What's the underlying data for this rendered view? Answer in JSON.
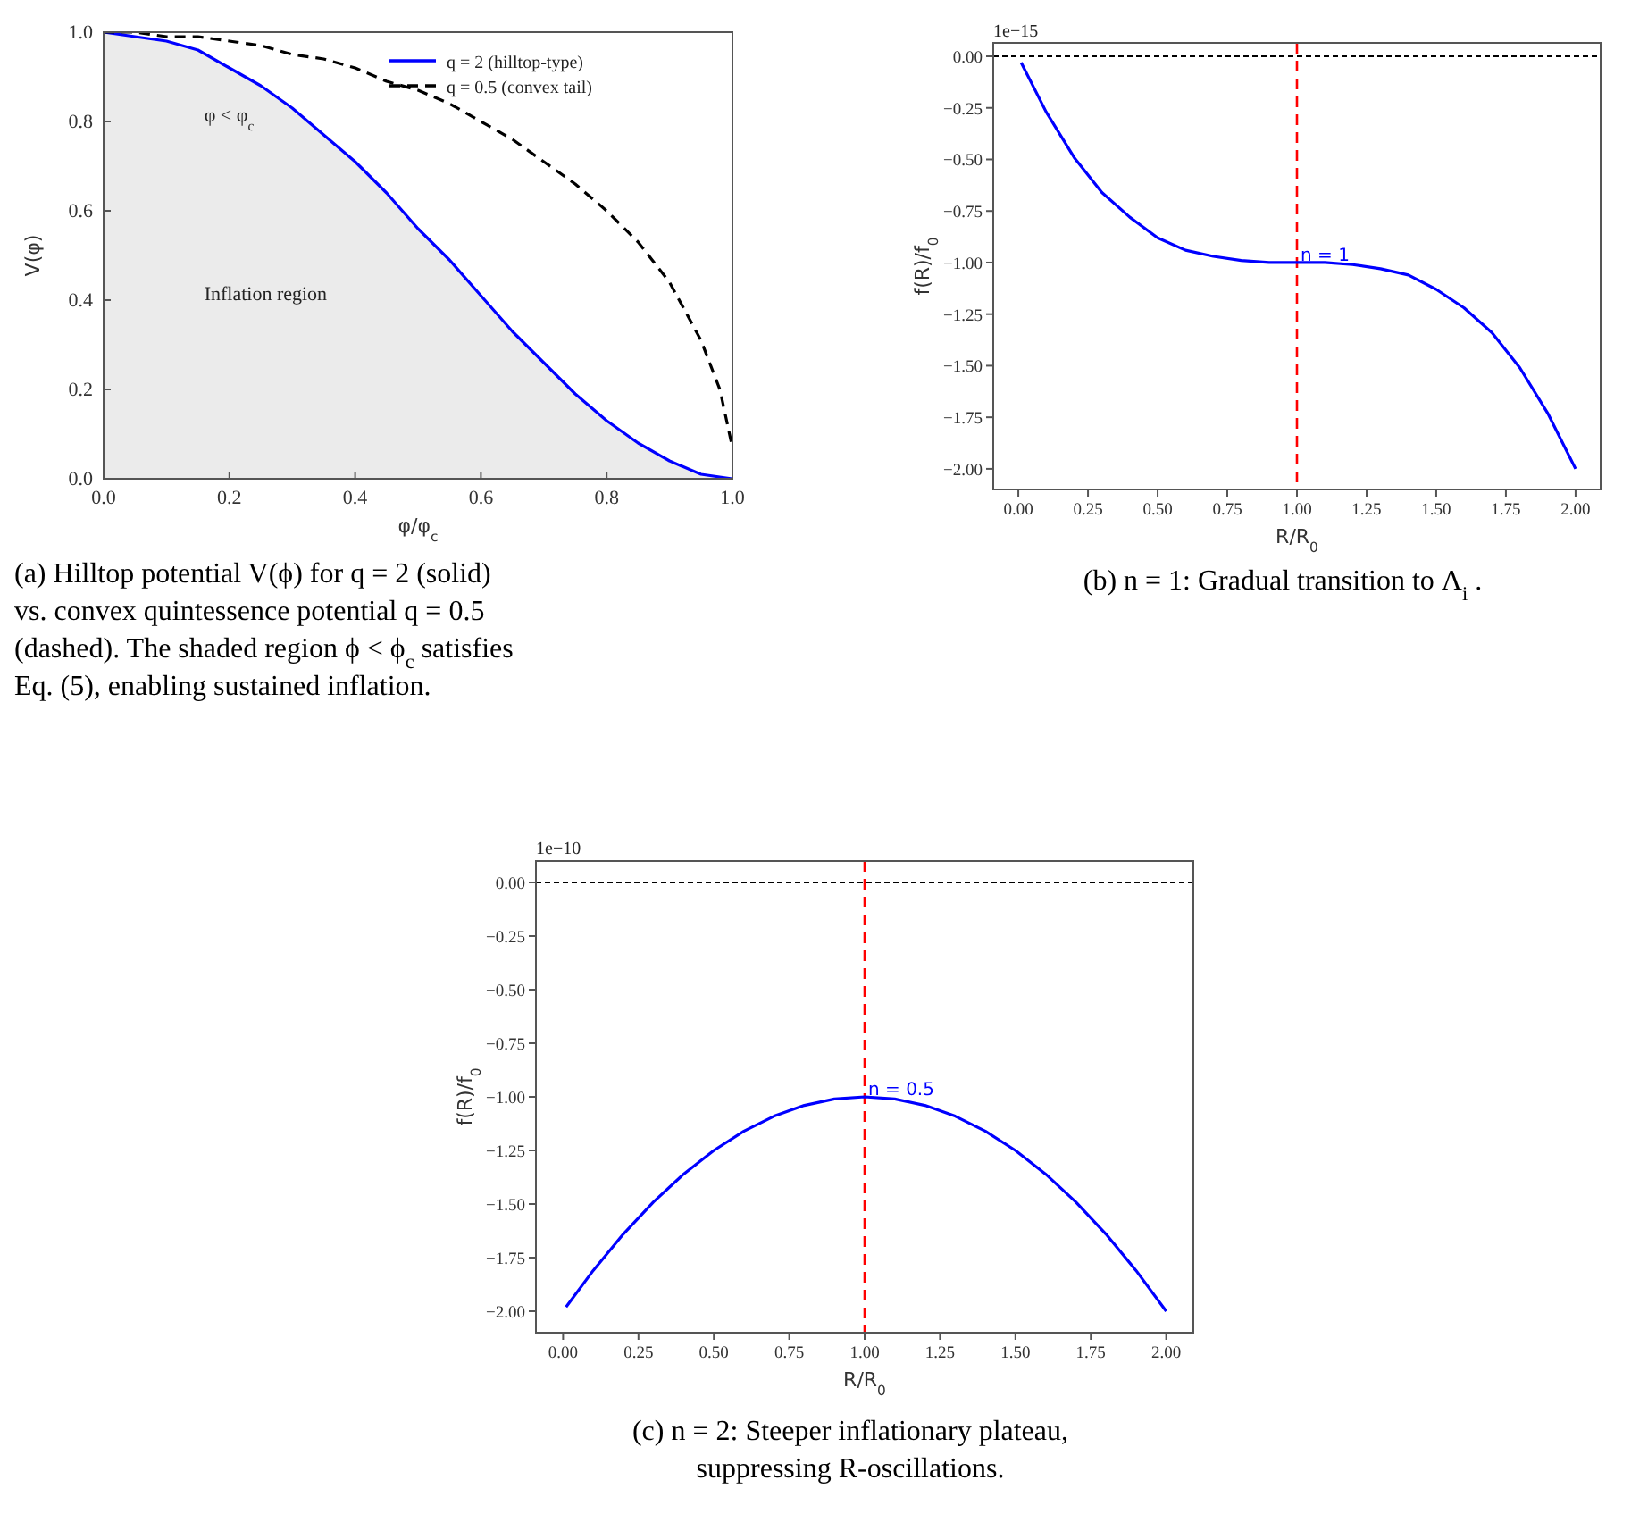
{
  "chart_data": [
    {
      "type": "line",
      "title": "(a) Hilltop potential V(ϕ) for q = 2 (solid) vs. convex quintessence potential q = 0.5 (dashed). The shaded region ϕ < ϕ$_{c}$ satisfies Eq. (5), enabling sustained inflation.",
      "xlabel": "φ/φ$_{c}$",
      "ylabel": "V(φ)",
      "xlim": [
        0,
        1
      ],
      "ylim": [
        0,
        1
      ],
      "xticks": [
        {
          "value": 0,
          "label": "0.0"
        },
        {
          "value": 0.2,
          "label": "0.2"
        },
        {
          "value": 0.4,
          "label": "0.4"
        },
        {
          "value": 0.6,
          "label": "0.6"
        },
        {
          "value": 0.8,
          "label": "0.8"
        },
        {
          "value": 1,
          "label": "1.0"
        }
      ],
      "yticks": [
        {
          "value": 0,
          "label": "0.0"
        },
        {
          "value": 0.2,
          "label": "0.2"
        },
        {
          "value": 0.4,
          "label": "0.4"
        },
        {
          "value": 0.6,
          "label": "0.6"
        },
        {
          "value": 0.8,
          "label": "0.8"
        },
        {
          "value": 1,
          "label": "1.0"
        }
      ],
      "legend": "top right",
      "annotations": [
        "φ < φ$_{c}$",
        "Inflation region"
      ],
      "series": [
        {
          "type": "area",
          "name": "q = 2 (hilltop-type)",
          "color": "#0000ff",
          "line_style": "solid",
          "x": [
            0,
            0.05,
            0.1,
            0.15,
            0.2,
            0.25,
            0.3,
            0.35,
            0.4,
            0.45,
            0.5,
            0.55,
            0.6,
            0.65,
            0.7,
            0.75,
            0.8,
            0.85,
            0.9,
            0.95,
            1
          ],
          "values": [
            1,
            0.99,
            0.98,
            0.96,
            0.92,
            0.88,
            0.83,
            0.77,
            0.71,
            0.64,
            0.56,
            0.49,
            0.41,
            0.33,
            0.26,
            0.19,
            0.13,
            0.08,
            0.04,
            0.01,
            0
          ]
        },
        {
          "name": "q = 0.5 (convex tail)",
          "color": "#000000",
          "line_style": "dashed",
          "x": [
            0,
            0.05,
            0.1,
            0.15,
            0.2,
            0.25,
            0.3,
            0.35,
            0.4,
            0.45,
            0.5,
            0.55,
            0.6,
            0.65,
            0.7,
            0.75,
            0.8,
            0.85,
            0.9,
            0.95,
            0.98,
            1
          ],
          "values": [
            1,
            1,
            0.99,
            0.99,
            0.98,
            0.97,
            0.95,
            0.94,
            0.92,
            0.89,
            0.87,
            0.84,
            0.8,
            0.76,
            0.71,
            0.66,
            0.6,
            0.53,
            0.44,
            0.31,
            0.2,
            0.07
          ]
        }
      ]
    },
    {
      "type": "line",
      "title": "(b) n = 1: Gradual transition to Λ$_{i}$.",
      "xlabel": "R/R$_{0}$",
      "ylabel": "f(R)/f$_{0}$",
      "xlim": [
        -0.09,
        2.09
      ],
      "ylim": [
        -2.1,
        0.065
      ],
      "xticks": [
        {
          "value": 0,
          "label": "0.00"
        },
        {
          "value": 0.25,
          "label": "0.25"
        },
        {
          "value": 0.5,
          "label": "0.50"
        },
        {
          "value": 0.75,
          "label": "0.75"
        },
        {
          "value": 1,
          "label": "1.00"
        },
        {
          "value": 1.25,
          "label": "1.25"
        },
        {
          "value": 1.5,
          "label": "1.50"
        },
        {
          "value": 1.75,
          "label": "1.75"
        },
        {
          "value": 2,
          "label": "2.00"
        }
      ],
      "yticks": [
        {
          "value": 0,
          "label": "0.00"
        },
        {
          "value": -0.25,
          "label": "−0.25"
        },
        {
          "value": -0.5,
          "label": "−0.50"
        },
        {
          "value": -0.75,
          "label": "−0.75"
        },
        {
          "value": -1,
          "label": "−1.00"
        },
        {
          "value": -1.25,
          "label": "−1.25"
        },
        {
          "value": -1.5,
          "label": "−1.50"
        },
        {
          "value": -1.75,
          "label": "−1.75"
        },
        {
          "value": -2,
          "label": "−2.00"
        }
      ],
      "annotations": [
        "1e−15",
        {
          "text": "n = 1",
          "x": 1,
          "y": -1
        }
      ],
      "ref_lines": [
        {
          "axis": "y",
          "value": 0,
          "color": "#000000",
          "line_style": "dashed"
        },
        {
          "axis": "x",
          "value": 1,
          "color": "#ff0000",
          "line_style": "dashed"
        }
      ],
      "series": [
        {
          "color": "#0000ff",
          "x": [
            0.01,
            0.1,
            0.2,
            0.3,
            0.4,
            0.5,
            0.6,
            0.7,
            0.8,
            0.9,
            1,
            1.1,
            1.2,
            1.3,
            1.4,
            1.5,
            1.6,
            1.7,
            1.8,
            1.9,
            2
          ],
          "values": [
            -0.03,
            -0.27,
            -0.49,
            -0.66,
            -0.78,
            -0.88,
            -0.94,
            -0.97,
            -0.99,
            -1,
            -1,
            -1,
            -1.01,
            -1.03,
            -1.06,
            -1.13,
            -1.22,
            -1.34,
            -1.51,
            -1.73,
            -2
          ]
        }
      ]
    },
    {
      "type": "line",
      "title": "(c) n = 2: Steeper inflationary plateau, suppressing R-oscillations.",
      "xlabel": "R/R$_{0}$",
      "ylabel": "f(R)/f$_{0}$",
      "xlim": [
        -0.09,
        2.09
      ],
      "ylim": [
        -2.1,
        0.1
      ],
      "xticks": [
        {
          "value": 0,
          "label": "0.00"
        },
        {
          "value": 0.25,
          "label": "0.25"
        },
        {
          "value": 0.5,
          "label": "0.50"
        },
        {
          "value": 0.75,
          "label": "0.75"
        },
        {
          "value": 1,
          "label": "1.00"
        },
        {
          "value": 1.25,
          "label": "1.25"
        },
        {
          "value": 1.5,
          "label": "1.50"
        },
        {
          "value": 1.75,
          "label": "1.75"
        },
        {
          "value": 2,
          "label": "2.00"
        }
      ],
      "yticks": [
        {
          "value": 0,
          "label": "0.00"
        },
        {
          "value": -0.25,
          "label": "−0.25"
        },
        {
          "value": -0.5,
          "label": "−0.50"
        },
        {
          "value": -0.75,
          "label": "−0.75"
        },
        {
          "value": -1,
          "label": "−1.00"
        },
        {
          "value": -1.25,
          "label": "−1.25"
        },
        {
          "value": -1.5,
          "label": "−1.50"
        },
        {
          "value": -1.75,
          "label": "−1.75"
        },
        {
          "value": -2,
          "label": "−2.00"
        }
      ],
      "annotations": [
        "1e−10",
        {
          "text": "n = 0.5",
          "x": 1,
          "y": -1
        }
      ],
      "ref_lines": [
        {
          "axis": "y",
          "value": 0,
          "color": "#000000",
          "line_style": "dashed"
        },
        {
          "axis": "x",
          "value": 1,
          "color": "#ff0000",
          "line_style": "dashed"
        }
      ],
      "series": [
        {
          "color": "#0000ff",
          "x": [
            0.01,
            0.1,
            0.2,
            0.3,
            0.4,
            0.5,
            0.6,
            0.7,
            0.8,
            0.9,
            1,
            1.1,
            1.2,
            1.3,
            1.4,
            1.5,
            1.6,
            1.7,
            1.8,
            1.9,
            2
          ],
          "values": [
            -1.98,
            -1.81,
            -1.64,
            -1.49,
            -1.36,
            -1.25,
            -1.16,
            -1.09,
            -1.04,
            -1.01,
            -1,
            -1.01,
            -1.04,
            -1.09,
            -1.16,
            -1.25,
            -1.36,
            -1.49,
            -1.64,
            -1.81,
            -2
          ]
        }
      ]
    }
  ]
}
